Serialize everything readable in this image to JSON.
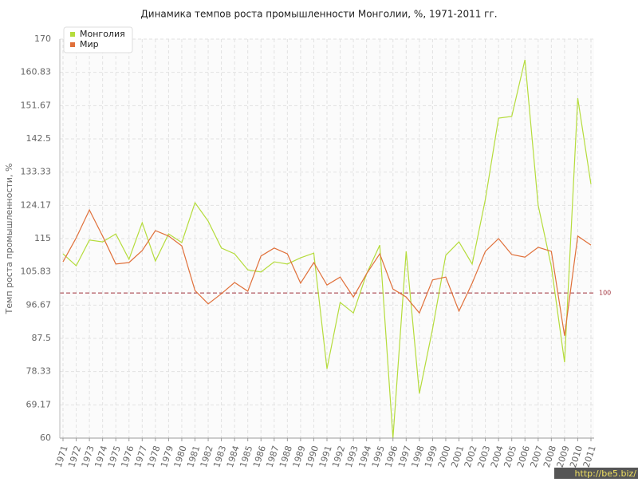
{
  "chart_data": {
    "type": "line",
    "title": "Динамика темпов роста промышленности Монголии, %, 1971-2011 гг.",
    "y_label": "Темп роста промышленности, %",
    "categories": [
      "1971",
      "1972",
      "1973",
      "1974",
      "1975",
      "1976",
      "1977",
      "1978",
      "1979",
      "1980",
      "1981",
      "1982",
      "1983",
      "1984",
      "1985",
      "1986",
      "1987",
      "1988",
      "1989",
      "1990",
      "1991",
      "1992",
      "1993",
      "1994",
      "1995",
      "1996",
      "1997",
      "1998",
      "1999",
      "2000",
      "2001",
      "2002",
      "2003",
      "2004",
      "2005",
      "2006",
      "2007",
      "2008",
      "2009",
      "2010",
      "2011"
    ],
    "series": [
      {
        "name": "Монголия",
        "color": "#b5dc3c",
        "values": [
          110.8,
          107.5,
          114.6,
          114.1,
          116.3,
          109.3,
          119.4,
          108.8,
          116.3,
          113.9,
          124.9,
          119.8,
          112.4,
          110.8,
          106.4,
          105.8,
          108.6,
          108.0,
          109.7,
          111.0,
          79.1,
          97.4,
          94.5,
          105.3,
          113.2,
          60.0,
          111.5,
          72.3,
          90.1,
          110.4,
          114.1,
          108.0,
          125.8,
          148.2,
          148.7,
          164.3,
          124.2,
          107.3,
          80.9,
          153.7,
          130.0
        ]
      },
      {
        "name": "Мир",
        "color": "#e0703a",
        "values": [
          108.6,
          115.2,
          122.9,
          115.7,
          108.0,
          108.4,
          111.7,
          117.2,
          115.7,
          113.0,
          100.7,
          97.0,
          99.8,
          102.9,
          100.5,
          110.2,
          112.4,
          110.8,
          102.7,
          108.4,
          102.2,
          104.4,
          98.9,
          105.3,
          110.8,
          101.1,
          98.9,
          94.5,
          103.6,
          104.4,
          95.0,
          102.7,
          111.5,
          115.0,
          110.6,
          109.9,
          112.6,
          111.5,
          88.2,
          115.7,
          113.2
        ]
      }
    ],
    "ylim": [
      60,
      170
    ],
    "yticks": [
      60,
      69.17,
      78.33,
      87.5,
      96.67,
      105.83,
      115,
      124.17,
      133.33,
      142.5,
      151.67,
      160.83,
      170
    ],
    "grid": true,
    "reference_line": 100,
    "reference_color": "#a0303a",
    "legend": "top-left",
    "watermark": "http://be5.biz/"
  }
}
